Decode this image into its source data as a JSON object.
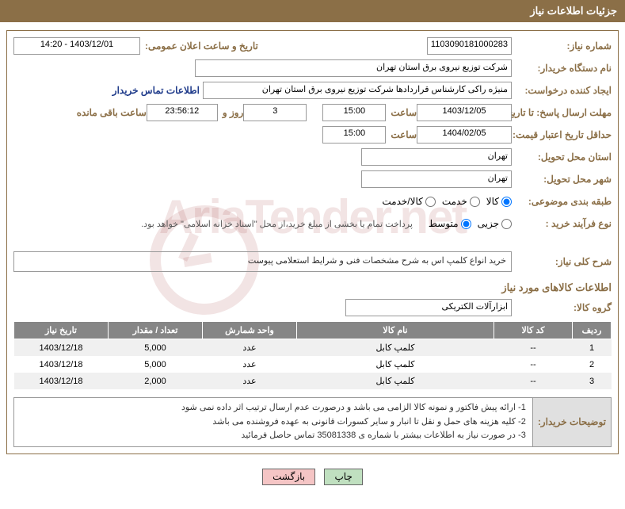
{
  "header": {
    "title": "جزئیات اطلاعات نیاز"
  },
  "fields": {
    "need_number_label": "شماره نیاز:",
    "need_number": "1103090181000283",
    "announce_label": "تاریخ و ساعت اعلان عمومی:",
    "announce_value": "1403/12/01 - 14:20",
    "buyer_org_label": "نام دستگاه خریدار:",
    "buyer_org": "شرکت توزیع نیروی برق استان تهران",
    "creator_label": "ایجاد کننده درخواست:",
    "creator": "منیژه راکی کارشناس قراردادها شرکت توزیع نیروی برق استان تهران",
    "contact_link": "اطلاعات تماس خریدار",
    "reply_deadline_label": "مهلت ارسال پاسخ: تا تاریخ:",
    "reply_date": "1403/12/05",
    "time_label": "ساعت",
    "reply_time": "15:00",
    "days_count": "3",
    "days_and": "روز و",
    "countdown": "23:56:12",
    "remaining": "ساعت باقی مانده",
    "validity_label": "حداقل تاریخ اعتبار قیمت: تا تاریخ:",
    "validity_date": "1404/02/05",
    "validity_time": "15:00",
    "province_label": "استان محل تحویل:",
    "province": "تهران",
    "city_label": "شهر محل تحویل:",
    "city": "تهران",
    "category_label": "طبقه بندی موضوعی:",
    "cat_goods": "کالا",
    "cat_service": "خدمت",
    "cat_both": "کالا/خدمت",
    "process_label": "نوع فرآیند خرید :",
    "proc_minor": "جزیی",
    "proc_medium": "متوسط",
    "process_note": "پرداخت تمام یا بخشی از مبلغ خرید،از محل \"اسناد خزانه اسلامی\" خواهد بود.",
    "desc_label": "شرح کلی نیاز:",
    "desc_text": "خرید انواع کلمپ اس به شرح مشخصات فنی و شرایط استعلامی پیوست",
    "goods_info_title": "اطلاعات کالاهای مورد نیاز",
    "group_label": "گروه کالا:",
    "group_value": "ابزارآلات الکتریکی"
  },
  "table": {
    "headers": {
      "row": "ردیف",
      "code": "کد کالا",
      "name": "نام کالا",
      "unit": "واحد شمارش",
      "qty": "تعداد / مقدار",
      "date": "تاریخ نیاز"
    },
    "rows": [
      {
        "n": "1",
        "code": "--",
        "name": "کلمپ کابل",
        "unit": "عدد",
        "qty": "5,000",
        "date": "1403/12/18"
      },
      {
        "n": "2",
        "code": "--",
        "name": "کلمپ کابل",
        "unit": "عدد",
        "qty": "5,000",
        "date": "1403/12/18"
      },
      {
        "n": "3",
        "code": "--",
        "name": "کلمپ کابل",
        "unit": "عدد",
        "qty": "2,000",
        "date": "1403/12/18"
      }
    ]
  },
  "buyer_notes": {
    "label": "توضیحات خریدار:",
    "l1": "1- ارائه پیش فاکتور و نمونه کالا الزامی می باشد و درصورت عدم ارسال ترتیب اثر داده نمی شود",
    "l2": "2- کلیه هزینه های حمل و نقل تا انبار و سایر کسورات قانونی به عهده فروشنده می باشد",
    "l3": "3- در صورت نیاز به اطلاعات بیشتر با شماره ی 35081338 تماس حاصل فرمائید"
  },
  "buttons": {
    "print": "چاپ",
    "back": "بازگشت"
  },
  "widths": {
    "need_number": 140,
    "announce": 150,
    "buyer_org": 390,
    "creator": 380,
    "date": 110,
    "time": 70,
    "days": 70,
    "countdown": 80,
    "city": 180,
    "group": 200
  }
}
